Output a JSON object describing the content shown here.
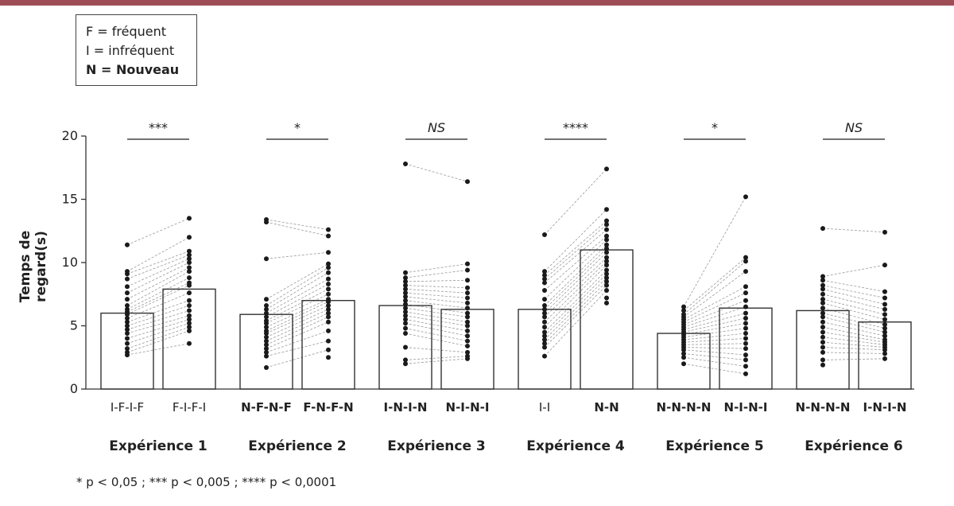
{
  "legend": {
    "frequent": "F = fréquent",
    "infrequent": "I = infréquent",
    "novel": "N = Nouveau"
  },
  "footnote": "* p < 0,05 ; *** p < 0,005 ; **** p < 0,0001",
  "chart_data": {
    "type": "bar",
    "ylabel": "Temps de regard(s)",
    "ylim": [
      0,
      20
    ],
    "yticks": [
      0,
      5,
      10,
      15,
      20
    ],
    "grid": false,
    "groups": [
      {
        "title": "Expérience 1",
        "significance": "***",
        "conditions": [
          {
            "label": "I-F-I-F",
            "mean": 6.0,
            "points": [
              11.4,
              9.3,
              9.1,
              8.7,
              8.1,
              7.6,
              7.1,
              6.6,
              6.3,
              6.1,
              5.9,
              5.6,
              5.3,
              5.0,
              4.7,
              4.4,
              4.0,
              3.6,
              3.2,
              2.9,
              2.7
            ]
          },
          {
            "label": "F-I-F-I",
            "mean": 7.9,
            "points": [
              13.5,
              12.0,
              10.9,
              10.6,
              10.3,
              10.0,
              9.6,
              9.3,
              8.8,
              8.4,
              8.2,
              7.6,
              7.0,
              6.6,
              6.2,
              5.8,
              5.5,
              5.2,
              4.9,
              4.6,
              3.6
            ]
          }
        ]
      },
      {
        "title": "Expérience 2",
        "significance": "*",
        "conditions": [
          {
            "label": "N-F-N-F",
            "mean": 5.9,
            "points": [
              13.4,
              13.2,
              10.3,
              7.1,
              6.6,
              6.3,
              6.0,
              5.7,
              5.4,
              5.2,
              4.9,
              4.6,
              4.4,
              4.1,
              3.8,
              3.5,
              3.2,
              2.9,
              2.6,
              1.7
            ]
          },
          {
            "label": "F-N-F-N",
            "mean": 7.0,
            "points": [
              12.6,
              12.1,
              10.8,
              9.9,
              9.6,
              9.2,
              8.7,
              8.3,
              7.9,
              7.5,
              7.1,
              6.9,
              6.6,
              6.3,
              6.0,
              5.7,
              5.3,
              4.6,
              3.8,
              3.1,
              2.5
            ]
          }
        ]
      },
      {
        "title": "Expérience 3",
        "significance": "NS",
        "conditions": [
          {
            "label": "I-N-I-N",
            "mean": 6.6,
            "points": [
              17.8,
              9.2,
              8.8,
              8.5,
              8.2,
              7.9,
              7.6,
              7.3,
              7.0,
              6.7,
              6.4,
              6.1,
              5.8,
              5.5,
              5.2,
              4.8,
              4.4,
              3.3,
              2.3,
              2.0
            ]
          },
          {
            "label": "N-I-N-I",
            "mean": 6.3,
            "points": [
              16.4,
              9.9,
              9.4,
              8.6,
              8.0,
              7.6,
              7.2,
              6.8,
              6.4,
              6.0,
              5.7,
              5.3,
              5.0,
              4.6,
              4.2,
              3.8,
              3.4,
              2.9,
              2.6,
              2.4
            ]
          }
        ]
      },
      {
        "title": "Expérience 4",
        "significance": "****",
        "conditions": [
          {
            "label": "I-I",
            "mean": 6.3,
            "points": [
              12.2,
              9.3,
              9.0,
              8.7,
              8.4,
              7.8,
              7.1,
              6.6,
              6.3,
              6.0,
              5.7,
              5.3,
              4.9,
              4.5,
              4.2,
              3.9,
              3.6,
              3.3,
              2.6
            ]
          },
          {
            "label": "N-N",
            "mean": 11.0,
            "points": [
              17.4,
              14.2,
              13.3,
              13.0,
              12.6,
              12.1,
              11.8,
              11.4,
              11.1,
              10.8,
              10.4,
              10.1,
              9.8,
              9.4,
              9.1,
              8.8,
              8.5,
              8.2,
              7.8,
              7.2,
              6.8
            ]
          }
        ]
      },
      {
        "title": "Expérience 5",
        "significance": "*",
        "conditions": [
          {
            "label": "N-N-N-N",
            "mean": 4.4,
            "points": [
              6.5,
              6.2,
              5.9,
              5.7,
              5.5,
              5.3,
              5.1,
              4.9,
              4.7,
              4.5,
              4.3,
              4.1,
              3.9,
              3.7,
              3.5,
              3.3,
              3.1,
              2.8,
              2.5,
              2.0
            ]
          },
          {
            "label": "N-I-N-I",
            "mean": 6.4,
            "points": [
              15.2,
              10.4,
              10.1,
              9.3,
              8.1,
              7.6,
              7.0,
              6.5,
              6.0,
              5.6,
              5.2,
              4.8,
              4.4,
              4.0,
              3.6,
              3.2,
              2.7,
              2.3,
              1.8,
              1.2
            ]
          }
        ]
      },
      {
        "title": "Expérience 6",
        "significance": "NS",
        "conditions": [
          {
            "label": "N-N-N-N",
            "mean": 6.2,
            "points": [
              12.7,
              8.9,
              8.6,
              8.2,
              7.9,
              7.5,
              7.1,
              6.8,
              6.4,
              6.0,
              5.7,
              5.3,
              4.9,
              4.5,
              4.1,
              3.7,
              3.3,
              2.9,
              2.3,
              1.9
            ]
          },
          {
            "label": "I-N-I-N",
            "mean": 5.3,
            "points": [
              12.4,
              9.8,
              7.7,
              7.2,
              6.7,
              6.3,
              5.9,
              5.5,
              5.1,
              4.8,
              4.5,
              4.2,
              3.9,
              3.7,
              3.5,
              3.3,
              3.1,
              2.8,
              2.4
            ]
          }
        ]
      }
    ]
  }
}
